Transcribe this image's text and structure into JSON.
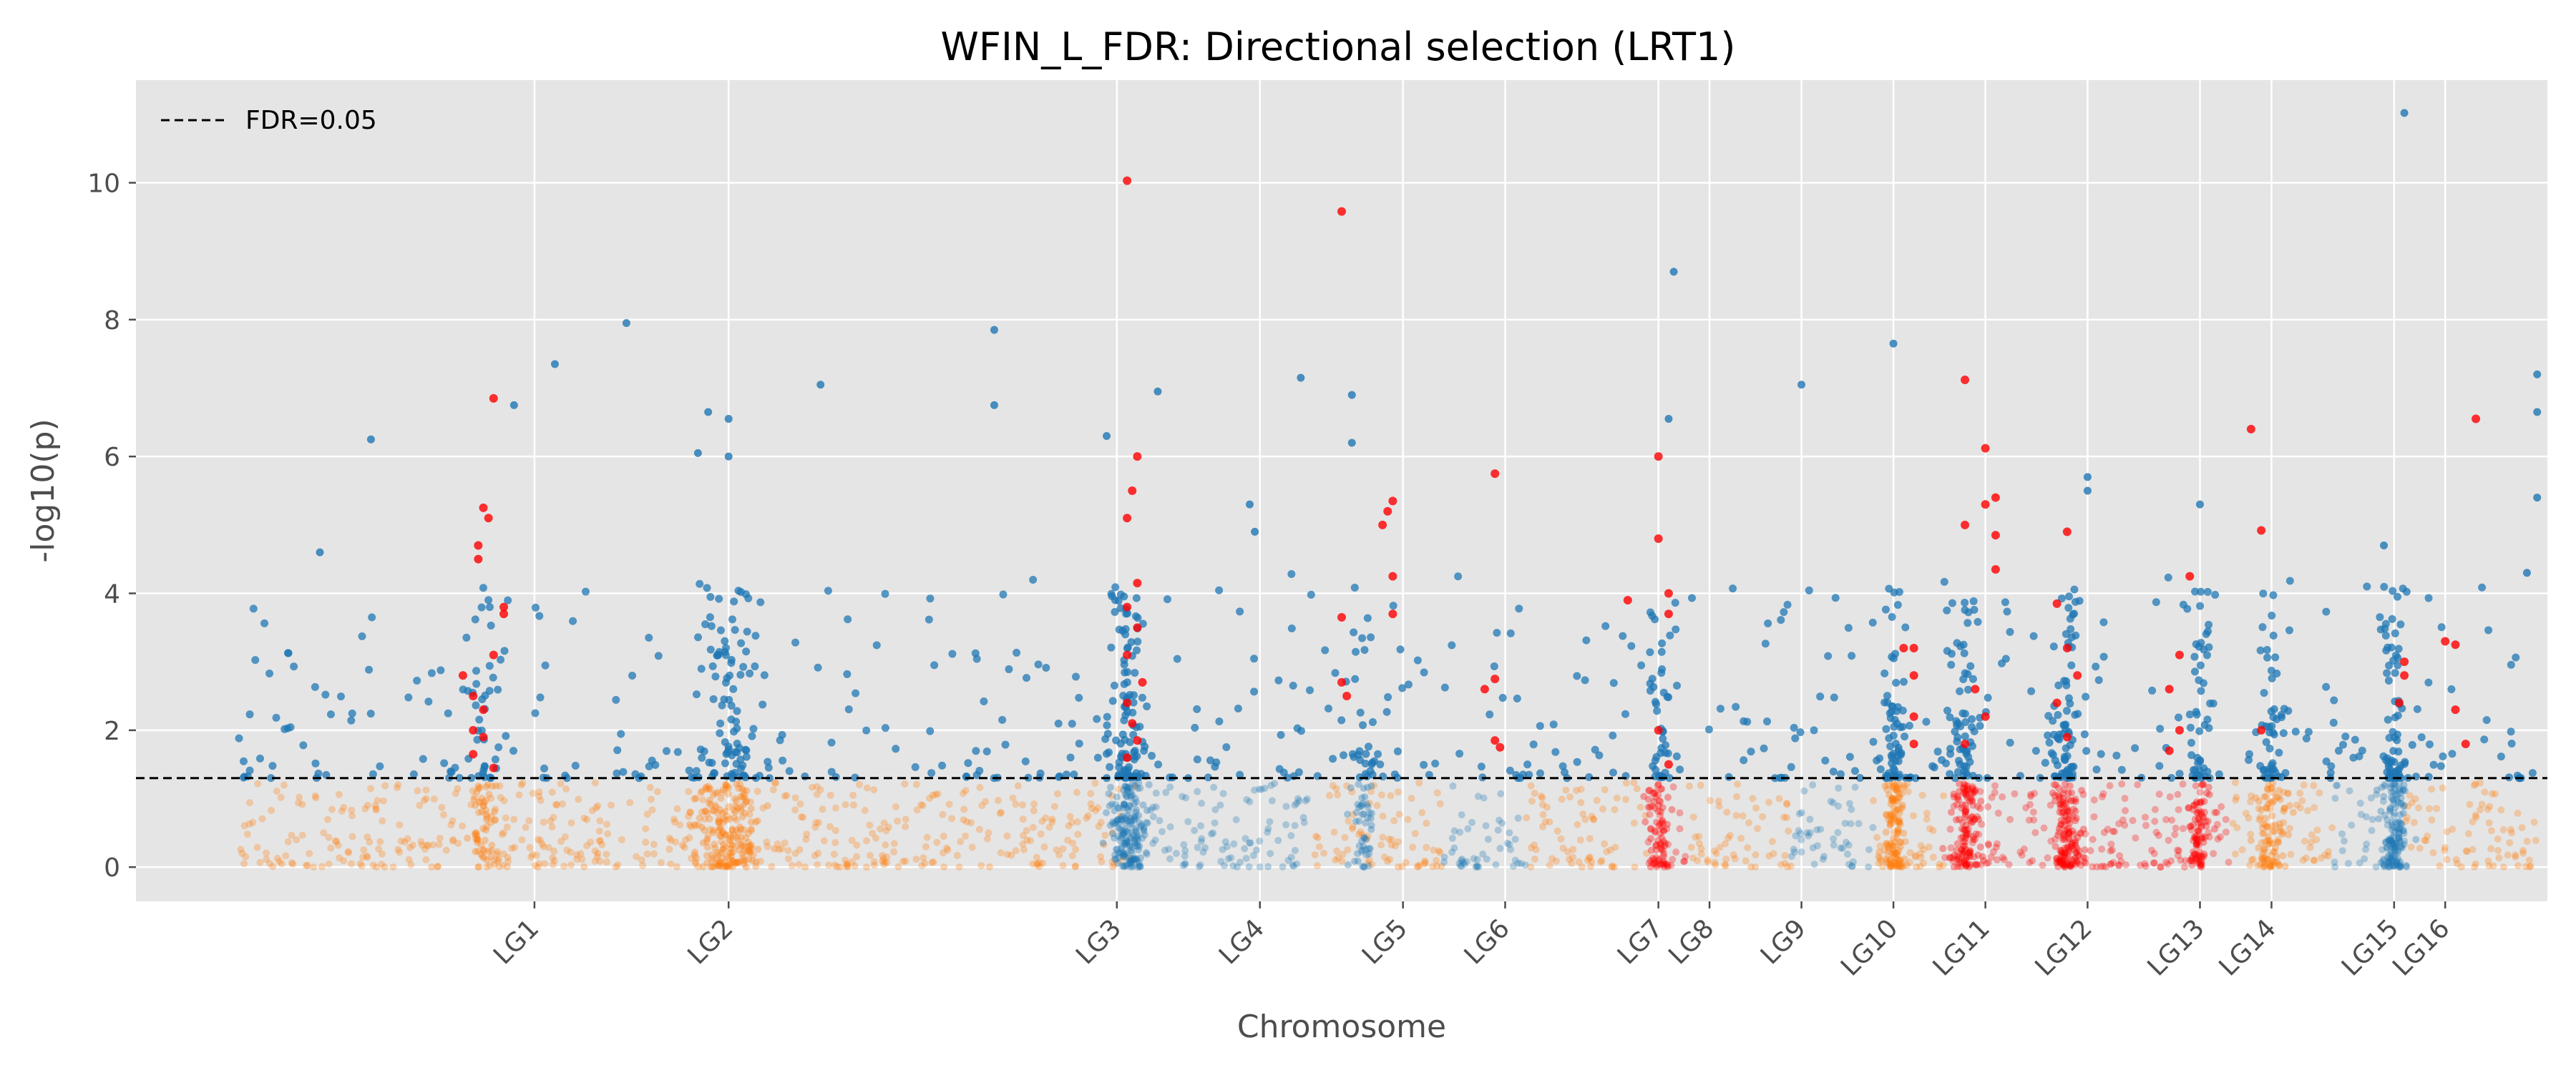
{
  "chart_data": {
    "type": "scatter",
    "title": "WFIN_L_FDR: Directional selection (LRT1)",
    "xlabel": "Chromosome",
    "ylabel": "-log10(p)",
    "ylim": [
      -0.5,
      11.5
    ],
    "yticks": [
      0,
      2,
      4,
      6,
      8,
      10
    ],
    "grid": true,
    "legend": {
      "position": "top-left",
      "entries": [
        {
          "label": "FDR=0.05",
          "style": "dashed"
        }
      ]
    },
    "threshold": {
      "label": "FDR=0.05",
      "y": 1.301
    },
    "colors": {
      "background": "#e5e5e5",
      "grid": "#ffffff",
      "blue": "#1f77b4",
      "orange": "#ff7f0e",
      "red": "#ff0000",
      "text": "#333333",
      "tick_text": "#4d4d4d"
    },
    "chromosomes": [
      {
        "name": "LG1",
        "start": 0,
        "end": 44,
        "tick": 29,
        "color": "orange",
        "peaks": [
          {
            "pos": 24,
            "density": 9,
            "spread": 1.2
          }
        ],
        "highlights": [
          {
            "x": 25,
            "y": 6.85
          },
          {
            "x": 24,
            "y": 5.25
          },
          {
            "x": 24.5,
            "y": 5.1
          },
          {
            "x": 23.5,
            "y": 4.7
          },
          {
            "x": 23.5,
            "y": 4.5
          },
          {
            "x": 26,
            "y": 3.8
          },
          {
            "x": 26,
            "y": 3.7
          },
          {
            "x": 25,
            "y": 3.1
          },
          {
            "x": 22,
            "y": 2.8
          },
          {
            "x": 23,
            "y": 2.5
          },
          {
            "x": 24,
            "y": 2.3
          },
          {
            "x": 23,
            "y": 2.0
          },
          {
            "x": 24,
            "y": 1.9
          },
          {
            "x": 23,
            "y": 1.65
          },
          {
            "x": 25,
            "y": 1.45
          }
        ],
        "highlight_color": "red",
        "outliers": [
          {
            "x": 31,
            "y": 7.35
          },
          {
            "x": 27,
            "y": 6.75
          },
          {
            "x": 38,
            "y": 7.95
          },
          {
            "x": 13,
            "y": 6.25
          },
          {
            "x": 8,
            "y": 4.6
          }
        ]
      },
      {
        "name": "LG2",
        "start": 44,
        "end": 88,
        "tick": 48,
        "color": "orange",
        "peaks": [
          {
            "pos": 48,
            "density": 30,
            "spread": 2.5
          }
        ],
        "highlights": [],
        "highlight_color": "blue",
        "outliers": [
          {
            "x": 46,
            "y": 6.65
          },
          {
            "x": 48,
            "y": 6.55
          },
          {
            "x": 57,
            "y": 7.05
          },
          {
            "x": 45,
            "y": 6.05
          },
          {
            "x": 48,
            "y": 6.0
          }
        ]
      },
      {
        "name": "LG3",
        "start": 88,
        "end": 105,
        "tick": 86,
        "color": "blue",
        "peaks": [
          {
            "pos": 87,
            "density": 30,
            "spread": 1.5
          }
        ],
        "highlights": [
          {
            "x": 87,
            "y": 10.03
          },
          {
            "x": 88,
            "y": 6.0
          },
          {
            "x": 87.5,
            "y": 5.5
          },
          {
            "x": 87,
            "y": 5.1
          },
          {
            "x": 88,
            "y": 4.15
          },
          {
            "x": 87,
            "y": 3.8
          },
          {
            "x": 88,
            "y": 3.5
          },
          {
            "x": 87,
            "y": 3.1
          },
          {
            "x": 88.5,
            "y": 2.7
          },
          {
            "x": 87,
            "y": 2.4
          },
          {
            "x": 87.5,
            "y": 2.1
          },
          {
            "x": 88,
            "y": 1.85
          },
          {
            "x": 87,
            "y": 1.6
          }
        ],
        "highlight_color": "red",
        "outliers": [
          {
            "x": 74,
            "y": 7.85
          },
          {
            "x": 74,
            "y": 6.75
          },
          {
            "x": 85,
            "y": 6.3
          },
          {
            "x": 90,
            "y": 6.95
          }
        ]
      },
      {
        "name": "LG4",
        "start": 105,
        "end": 118,
        "tick": 100,
        "color": "orange",
        "peaks": [],
        "highlights": [],
        "highlight_color": "blue",
        "outliers": [
          {
            "x": 99,
            "y": 5.3
          },
          {
            "x": 99.5,
            "y": 4.9
          }
        ]
      },
      {
        "name": "LG5",
        "start": 118,
        "end": 126,
        "tick": 114,
        "color": "blue",
        "peaks": [
          {
            "pos": 110,
            "density": 8,
            "spread": 1.0
          }
        ],
        "highlights": [
          {
            "x": 108,
            "y": 9.58
          },
          {
            "x": 113,
            "y": 5.35
          },
          {
            "x": 112.5,
            "y": 5.2
          },
          {
            "x": 112,
            "y": 5.0
          },
          {
            "x": 113,
            "y": 4.25
          },
          {
            "x": 108,
            "y": 3.65
          },
          {
            "x": 113,
            "y": 3.7
          },
          {
            "x": 108,
            "y": 2.7
          },
          {
            "x": 108.5,
            "y": 2.5
          }
        ],
        "highlight_color": "red",
        "outliers": [
          {
            "x": 104,
            "y": 7.15
          },
          {
            "x": 109,
            "y": 6.9
          },
          {
            "x": 109,
            "y": 6.2
          }
        ]
      },
      {
        "name": "LG6",
        "start": 126,
        "end": 138,
        "tick": 124,
        "color": "orange",
        "peaks": [],
        "highlights": [
          {
            "x": 123,
            "y": 5.75
          },
          {
            "x": 123,
            "y": 2.75
          },
          {
            "x": 122,
            "y": 2.6
          },
          {
            "x": 123,
            "y": 1.85
          },
          {
            "x": 123.5,
            "y": 1.75
          }
        ],
        "highlight_color": "red",
        "outliers": []
      },
      {
        "name": "LG7",
        "start": 138,
        "end": 142,
        "tick": 139,
        "color": "red",
        "peaks": [
          {
            "pos": 139,
            "density": 12,
            "spread": 1.0
          }
        ],
        "highlights": [
          {
            "x": 139,
            "y": 6.0
          },
          {
            "x": 139,
            "y": 4.8
          },
          {
            "x": 140,
            "y": 4.0
          },
          {
            "x": 140,
            "y": 3.7
          },
          {
            "x": 136,
            "y": 3.9
          },
          {
            "x": 139,
            "y": 2.0
          },
          {
            "x": 140,
            "y": 1.5
          }
        ],
        "highlight_color": "red",
        "outliers": [
          {
            "x": 140.5,
            "y": 8.7
          },
          {
            "x": 140,
            "y": 6.55
          }
        ]
      },
      {
        "name": "LG8",
        "start": 142,
        "end": 152,
        "tick": 144,
        "color": "orange",
        "peaks": [],
        "highlights": [],
        "highlight_color": "blue",
        "outliers": []
      },
      {
        "name": "LG9",
        "start": 152,
        "end": 160,
        "tick": 153,
        "color": "blue",
        "peaks": [],
        "highlights": [],
        "highlight_color": "blue",
        "outliers": [
          {
            "x": 153,
            "y": 7.05
          }
        ]
      },
      {
        "name": "LG10",
        "start": 160,
        "end": 167,
        "tick": 162,
        "color": "orange",
        "peaks": [
          {
            "pos": 162,
            "density": 20,
            "spread": 1.0
          }
        ],
        "highlights": [
          {
            "x": 163,
            "y": 3.2
          },
          {
            "x": 164,
            "y": 3.2
          },
          {
            "x": 164,
            "y": 2.8
          },
          {
            "x": 164,
            "y": 2.2
          },
          {
            "x": 164,
            "y": 1.8
          }
        ],
        "highlight_color": "red",
        "outliers": [
          {
            "x": 162,
            "y": 7.65
          }
        ]
      },
      {
        "name": "LG11",
        "start": 167,
        "end": 176,
        "tick": 171,
        "color": "red",
        "peaks": [
          {
            "pos": 169,
            "density": 20,
            "spread": 1.2
          }
        ],
        "highlights": [
          {
            "x": 169,
            "y": 7.12
          },
          {
            "x": 171,
            "y": 6.12
          },
          {
            "x": 172,
            "y": 5.4
          },
          {
            "x": 171,
            "y": 5.3
          },
          {
            "x": 169,
            "y": 5.0
          },
          {
            "x": 172,
            "y": 4.85
          },
          {
            "x": 172,
            "y": 4.35
          },
          {
            "x": 170,
            "y": 2.6
          },
          {
            "x": 171,
            "y": 2.2
          },
          {
            "x": 169,
            "y": 1.8
          }
        ],
        "highlight_color": "red",
        "outliers": []
      },
      {
        "name": "LG12",
        "start": 176,
        "end": 186,
        "tick": 181,
        "color": "red",
        "peaks": [
          {
            "pos": 179,
            "density": 22,
            "spread": 1.2
          }
        ],
        "highlights": [
          {
            "x": 179,
            "y": 4.9
          },
          {
            "x": 178,
            "y": 3.85
          },
          {
            "x": 179,
            "y": 3.2
          },
          {
            "x": 180,
            "y": 2.8
          },
          {
            "x": 178,
            "y": 2.4
          },
          {
            "x": 179,
            "y": 1.9
          }
        ],
        "highlight_color": "red",
        "outliers": [
          {
            "x": 181,
            "y": 5.7
          },
          {
            "x": 181,
            "y": 5.5
          }
        ]
      },
      {
        "name": "LG13",
        "start": 186,
        "end": 195,
        "tick": 192,
        "color": "red",
        "peaks": [
          {
            "pos": 192,
            "density": 14,
            "spread": 1.0
          }
        ],
        "highlights": [
          {
            "x": 191,
            "y": 4.25
          },
          {
            "x": 190,
            "y": 3.1
          },
          {
            "x": 189,
            "y": 2.6
          },
          {
            "x": 190,
            "y": 2.0
          },
          {
            "x": 189,
            "y": 1.7
          }
        ],
        "highlight_color": "red",
        "outliers": [
          {
            "x": 192,
            "y": 5.3
          }
        ]
      },
      {
        "name": "LG14",
        "start": 195,
        "end": 205,
        "tick": 199,
        "color": "orange",
        "peaks": [
          {
            "pos": 199,
            "density": 14,
            "spread": 1.2
          }
        ],
        "highlights": [
          {
            "x": 197,
            "y": 6.4
          },
          {
            "x": 198,
            "y": 4.92
          },
          {
            "x": 198,
            "y": 2.0
          }
        ],
        "highlight_color": "red",
        "outliers": []
      },
      {
        "name": "LG15",
        "start": 205,
        "end": 212,
        "tick": 211,
        "color": "blue",
        "peaks": [
          {
            "pos": 211,
            "density": 22,
            "spread": 1.0
          }
        ],
        "highlights": [
          {
            "x": 212,
            "y": 3.0
          },
          {
            "x": 212,
            "y": 2.8
          },
          {
            "x": 211.5,
            "y": 2.4
          }
        ],
        "highlight_color": "red",
        "outliers": [
          {
            "x": 212,
            "y": 11.02
          },
          {
            "x": 210,
            "y": 4.7
          }
        ]
      },
      {
        "name": "LG16",
        "start": 212,
        "end": 225,
        "tick": 216,
        "color": "orange",
        "peaks": [],
        "highlights": [
          {
            "x": 219,
            "y": 6.55
          },
          {
            "x": 216,
            "y": 3.3
          },
          {
            "x": 217,
            "y": 3.25
          },
          {
            "x": 217,
            "y": 2.3
          },
          {
            "x": 218,
            "y": 1.8
          }
        ],
        "highlight_color": "red",
        "outliers": [
          {
            "x": 225,
            "y": 7.2
          },
          {
            "x": 225,
            "y": 6.65
          },
          {
            "x": 225,
            "y": 5.4
          },
          {
            "x": 224,
            "y": 4.3
          }
        ]
      }
    ],
    "xlim": [
      -10,
      226
    ]
  }
}
